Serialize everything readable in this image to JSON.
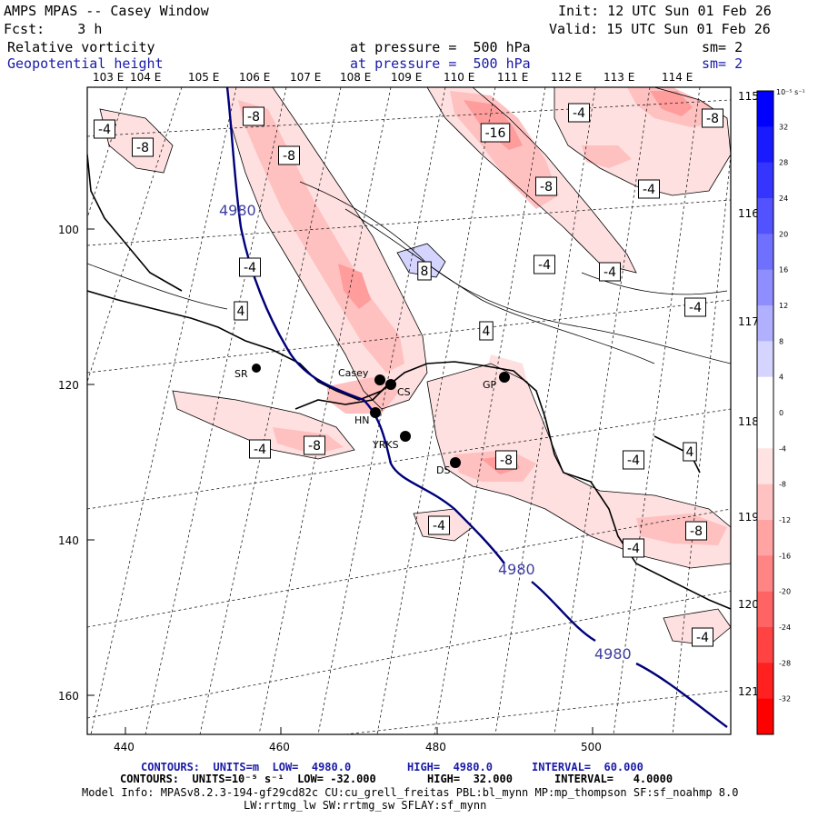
{
  "header": {
    "model": "AMPS MPAS -- Casey Window",
    "init": "Init: 12 UTC Sun 01 Feb 26",
    "forecast": "Fcst:    3 h",
    "valid": "Valid: 15 UTC Sun 01 Feb 26",
    "field1_name": "Relative vorticity",
    "field1_level": "at pressure =  500 hPa",
    "field1_sm": "sm= 2",
    "field2_name": "Geopotential height",
    "field2_level": "at pressure =  500 hPa",
    "field2_sm": "sm= 2"
  },
  "axes": {
    "top_lon": [
      "103 E",
      "104 E",
      "105 E",
      "106 E",
      "107 E",
      "108 E",
      "109 E",
      "110 E",
      "111 E",
      "112 E",
      "113 E",
      "114 E"
    ],
    "right_lon": [
      "115 E",
      "116 E",
      "117 E",
      "118 E",
      "119 E",
      "120 E",
      "121 E"
    ],
    "left_ticks": [
      "100",
      "120",
      "140",
      "160"
    ],
    "bottom_ticks": [
      "440",
      "460",
      "480",
      "500"
    ]
  },
  "colorbar": {
    "unit": "10⁻⁵ s⁻¹",
    "labels": [
      "32",
      "28",
      "24",
      "20",
      "16",
      "12",
      "8",
      "4",
      "0",
      "-4",
      "-8",
      "-12",
      "-16",
      "-20",
      "-24",
      "-28",
      "-32"
    ],
    "colors": [
      "#0000ff",
      "#1a1aff",
      "#3535ff",
      "#5252ff",
      "#7070ff",
      "#8e8eff",
      "#b0b0ff",
      "#d4d4ff",
      "#ffffff",
      "#ffffff",
      "#ffe2e2",
      "#ffc2c2",
      "#ffa3a3",
      "#ff8585",
      "#ff6464",
      "#ff4343",
      "#ff2020",
      "#ff0000"
    ]
  },
  "stations": [
    {
      "name": "SR"
    },
    {
      "name": "Casey"
    },
    {
      "name": "CS"
    },
    {
      "name": "HN"
    },
    {
      "name": "YRKS"
    },
    {
      "name": "DS"
    },
    {
      "name": "GP"
    }
  ],
  "height_labels": [
    "4980",
    "4980",
    "4980"
  ],
  "vort_labels": [
    "-4",
    "-8",
    "-8",
    "-8",
    "-16",
    "-4",
    "-8",
    "-8",
    "-4",
    "8",
    "-4",
    "-4",
    "-4",
    "4",
    "-4",
    "4",
    "-4",
    "-8",
    "-8",
    "-4",
    "-4",
    "-4",
    "4",
    "-8",
    "-4",
    "-4"
  ],
  "footer": {
    "line1_a": "CONTOURS:  UNITS=m  LOW=  4980.0",
    "line1_b": "HIGH=  4980.0",
    "line1_c": "INTERVAL=  60.000",
    "line2_a": "CONTOURS:  UNITS=10⁻⁵ s⁻¹  LOW= -32.000",
    "line2_b": "HIGH=  32.000",
    "line2_c": "INTERVAL=   4.0000",
    "line3": "Model Info: MPASv8.2.3-194-gf29cd82c CU:cu_grell_freitas PBL:bl_mynn MP:mp_thompson SF:sf_noahmp 8.0",
    "line4": "LW:rrtmg_lw SW:rrtmg_sw SFLAY:sf_mynn"
  }
}
